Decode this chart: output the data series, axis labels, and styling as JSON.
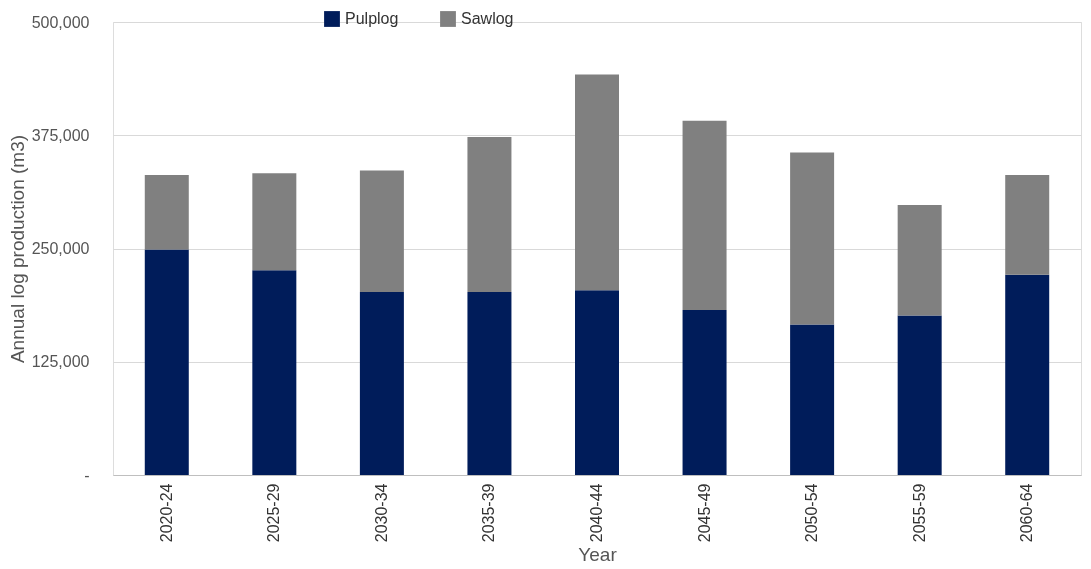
{
  "chart_data": {
    "type": "bar",
    "stacked": true,
    "xlabel": "Year",
    "ylabel": "Annual log production (m3)",
    "categories": [
      "2020-24",
      "2025-29",
      "2030-34",
      "2035-39",
      "2040-44",
      "2045-49",
      "2050-54",
      "2055-59",
      "2060-64"
    ],
    "series": [
      {
        "name": "Pulplog",
        "color": "#001c5a",
        "values": [
          249000,
          226000,
          202000,
          202000,
          204000,
          182000,
          166000,
          176000,
          221000
        ]
      },
      {
        "name": "Sawlog",
        "color": "#808080",
        "values": [
          82000,
          107000,
          134000,
          171000,
          238000,
          209000,
          190000,
          122000,
          110000
        ]
      }
    ],
    "ylim": [
      0,
      500000
    ],
    "yticks": [
      {
        "value": 0,
        "label": "-"
      },
      {
        "value": 125000,
        "label": "125,000"
      },
      {
        "value": 250000,
        "label": "250,000"
      },
      {
        "value": 375000,
        "label": "375,000"
      },
      {
        "value": 500000,
        "label": "500,000"
      }
    ],
    "grid": "y",
    "legend": "top left"
  }
}
